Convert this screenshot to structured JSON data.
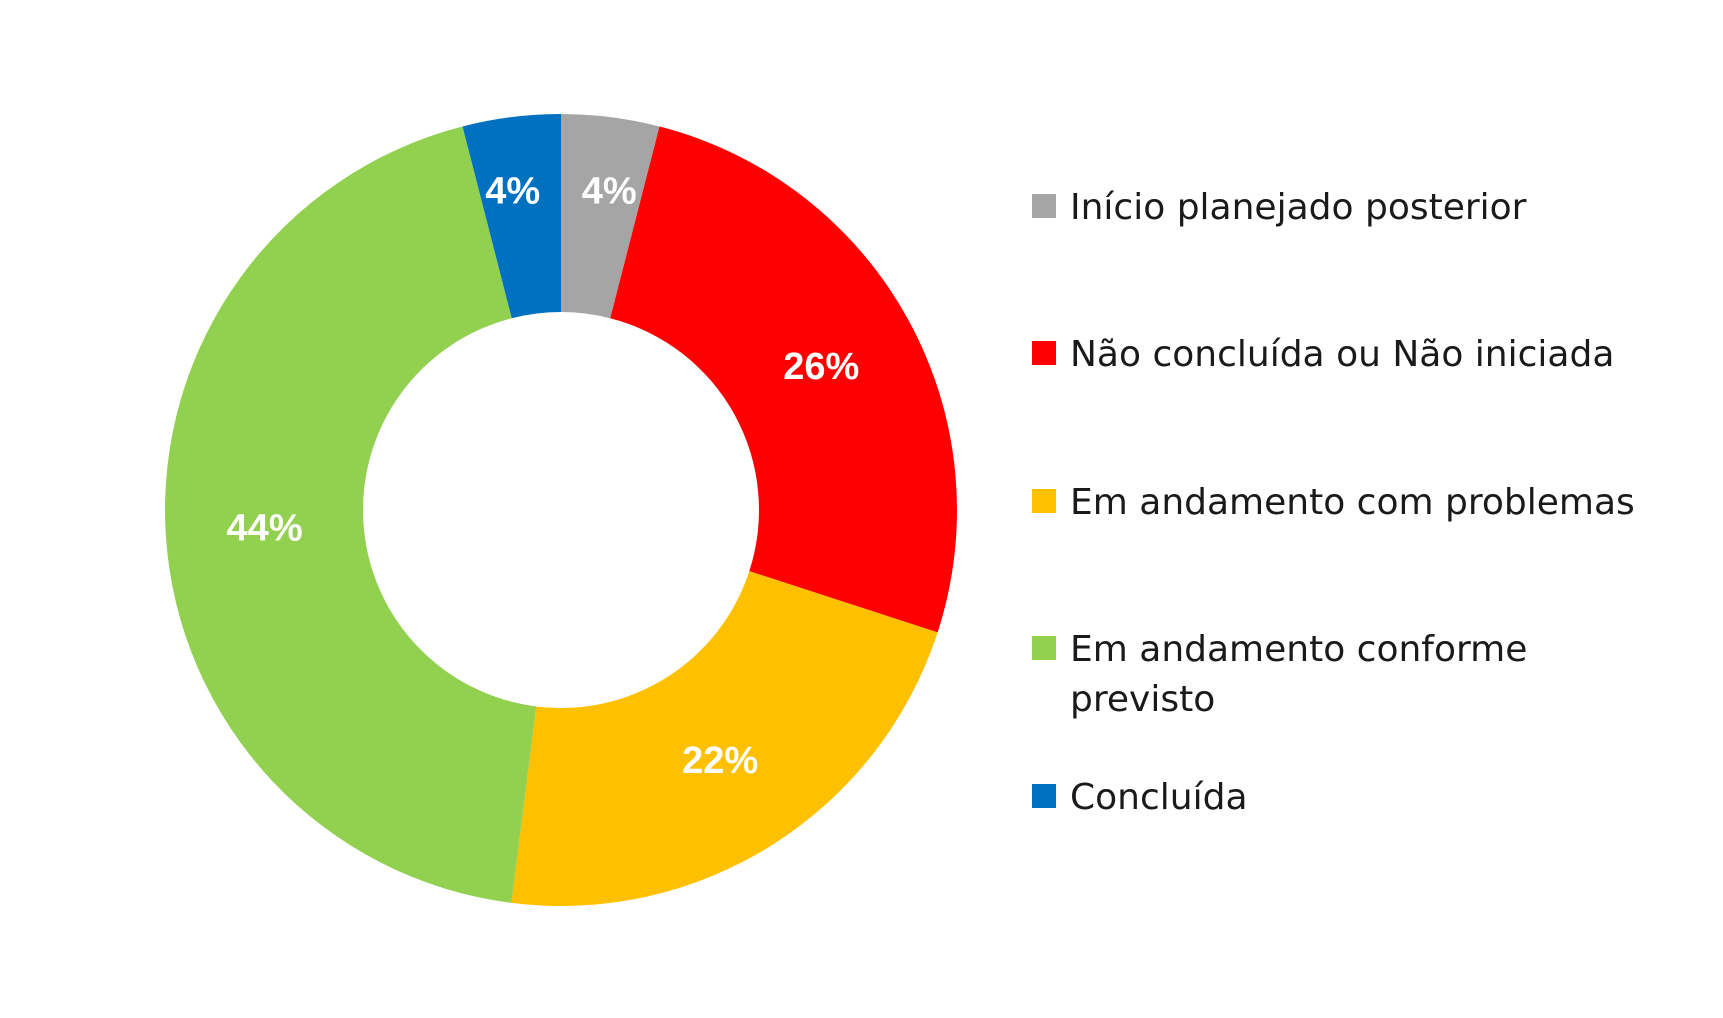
{
  "chart_data": {
    "type": "pie",
    "donut": true,
    "categories": [
      "Início planejado posterior",
      "Não concluída ou Não iniciada",
      "Em andamento com problemas",
      "Em andamento conforme previsto",
      "Concluída"
    ],
    "values": [
      4,
      26,
      22,
      44,
      4
    ],
    "value_labels": [
      "4%",
      "26%",
      "22%",
      "44%",
      "4%"
    ],
    "colors": [
      "#A5A5A5",
      "#FF0000",
      "#FFC000",
      "#92D050",
      "#0070C0"
    ],
    "legend_position": "right",
    "title": ""
  }
}
